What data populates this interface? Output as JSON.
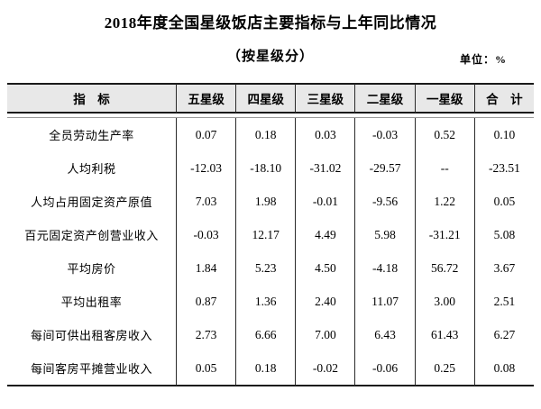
{
  "page": {
    "title": "2018年度全国星级饭店主要指标与上年同比情况",
    "subtitle": "（按星级分）",
    "unit_label": "单位：%"
  },
  "table": {
    "columns": [
      "指　标",
      "五星级",
      "四星级",
      "三星级",
      "二星级",
      "一星级",
      "合　计"
    ],
    "rows": [
      {
        "label": "全员劳动生产率",
        "values": [
          "0.07",
          "0.18",
          "0.03",
          "-0.03",
          "0.52",
          "0.10"
        ]
      },
      {
        "label": "人均利税",
        "values": [
          "-12.03",
          "-18.10",
          "-31.02",
          "-29.57",
          "--",
          "-23.51"
        ]
      },
      {
        "label": "人均占用固定资产原值",
        "values": [
          "7.03",
          "1.98",
          "-0.01",
          "-9.56",
          "1.22",
          "0.05"
        ]
      },
      {
        "label": "百元固定资产创营业收入",
        "values": [
          "-0.03",
          "12.17",
          "4.49",
          "5.98",
          "-31.21",
          "5.08"
        ]
      },
      {
        "label": "平均房价",
        "values": [
          "1.84",
          "5.23",
          "4.50",
          "-4.18",
          "56.72",
          "3.67"
        ]
      },
      {
        "label": "平均出租率",
        "values": [
          "0.87",
          "1.36",
          "2.40",
          "11.07",
          "3.00",
          "2.51"
        ]
      },
      {
        "label": "每间可供出租客房收入",
        "values": [
          "2.73",
          "6.66",
          "7.00",
          "6.43",
          "61.43",
          "6.27"
        ]
      },
      {
        "label": "每间客房平摊营业收入",
        "values": [
          "0.05",
          "0.18",
          "-0.02",
          "-0.06",
          "0.25",
          "0.08"
        ]
      }
    ]
  },
  "colors": {
    "header_bg": "#e8e8e8",
    "rule_dark": "#1a1a1a",
    "rule_thin": "#999999",
    "text": "#000000"
  }
}
